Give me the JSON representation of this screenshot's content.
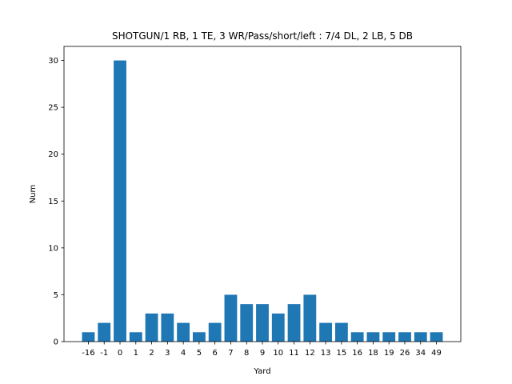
{
  "chart_data": {
    "type": "bar",
    "title": "SHOTGUN/1 RB, 1 TE, 3 WR/Pass/short/left : 7/4 DL, 2 LB, 5 DB",
    "xlabel": "Yard",
    "ylabel": "Num",
    "categories": [
      "-16",
      "-1",
      "0",
      "1",
      "2",
      "3",
      "4",
      "5",
      "6",
      "7",
      "8",
      "9",
      "10",
      "11",
      "12",
      "13",
      "15",
      "16",
      "18",
      "19",
      "26",
      "34",
      "49"
    ],
    "values": [
      1,
      2,
      30,
      1,
      3,
      3,
      2,
      1,
      2,
      5,
      4,
      4,
      3,
      4,
      5,
      2,
      2,
      1,
      1,
      1,
      1,
      1,
      1
    ],
    "ylim": [
      0,
      31.5
    ],
    "yticks": [
      0,
      5,
      10,
      15,
      20,
      25,
      30
    ],
    "grid": false,
    "bar_color": "#1f77b4"
  }
}
